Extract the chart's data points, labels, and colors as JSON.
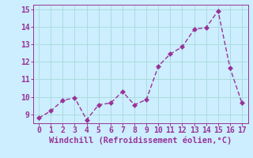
{
  "x": [
    0,
    1,
    2,
    3,
    4,
    5,
    6,
    7,
    8,
    9,
    10,
    11,
    12,
    13,
    14,
    15,
    16,
    17
  ],
  "y": [
    8.8,
    9.2,
    9.8,
    9.95,
    8.7,
    9.55,
    9.65,
    10.3,
    9.55,
    9.85,
    11.75,
    12.45,
    12.85,
    13.85,
    13.95,
    14.9,
    11.65,
    9.65
  ],
  "line_color": "#993399",
  "marker_color": "#993399",
  "bg_color": "#cceeff",
  "grid_color": "#aadddd",
  "xlabel": "Windchill (Refroidissement éolien,°C)",
  "xlabel_color": "#993399",
  "tick_color": "#993399",
  "ylim": [
    8.5,
    15.25
  ],
  "yticks": [
    9,
    10,
    11,
    12,
    13,
    14,
    15
  ],
  "xlim": [
    -0.5,
    17.5
  ],
  "xticks": [
    0,
    1,
    2,
    3,
    4,
    5,
    6,
    7,
    8,
    9,
    10,
    11,
    12,
    13,
    14,
    15,
    16,
    17
  ],
  "tick_fontsize": 7,
  "xlabel_fontsize": 7.5,
  "marker_size": 3,
  "linewidth": 1.0
}
